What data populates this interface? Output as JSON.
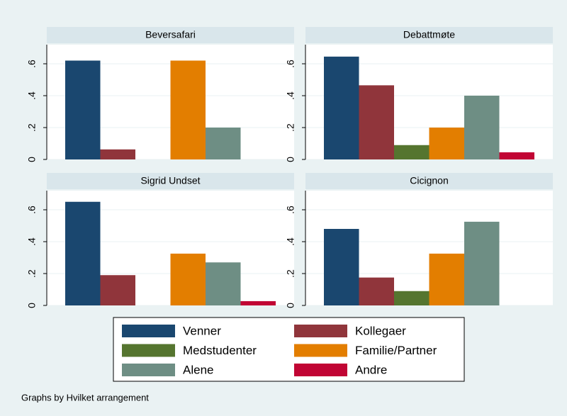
{
  "chart_data": [
    {
      "type": "bar",
      "title": "Beversafari",
      "values": [
        0.62,
        0.063,
        null,
        0.62,
        0.2,
        null
      ],
      "ylim": [
        0,
        0.72
      ],
      "yticks": [
        0,
        {
          "value": 0.2,
          "label": ".2"
        },
        {
          "value": 0.4,
          "label": ".4"
        },
        {
          "value": 0.6,
          "label": ".6"
        }
      ],
      "grid": true
    },
    {
      "type": "bar",
      "title": "Debattmøte",
      "values": [
        0.645,
        0.465,
        0.09,
        0.2,
        0.4,
        0.045
      ],
      "ylim": [
        0,
        0.72
      ],
      "yticks": [
        0,
        {
          "value": 0.2,
          "label": ".2"
        },
        {
          "value": 0.4,
          "label": ".4"
        },
        {
          "value": 0.6,
          "label": ".6"
        }
      ],
      "grid": true
    },
    {
      "type": "bar",
      "title": "Sigrid Undset",
      "values": [
        0.65,
        0.19,
        null,
        0.325,
        0.27,
        0.027
      ],
      "ylim": [
        0,
        0.72
      ],
      "yticks": [
        0,
        {
          "value": 0.2,
          "label": ".2"
        },
        {
          "value": 0.4,
          "label": ".4"
        },
        {
          "value": 0.6,
          "label": ".6"
        }
      ],
      "grid": true
    },
    {
      "type": "bar",
      "title": "Cicignon",
      "values": [
        0.48,
        0.175,
        0.09,
        0.325,
        0.525,
        null
      ],
      "ylim": [
        0,
        0.72
      ],
      "yticks": [
        0,
        {
          "value": 0.2,
          "label": ".2"
        },
        {
          "value": 0.4,
          "label": ".4"
        },
        {
          "value": 0.6,
          "label": ".6"
        }
      ],
      "grid": true
    }
  ],
  "legend": {
    "series": [
      {
        "name": "Venner",
        "color": "#1a476f"
      },
      {
        "name": "Kollegaer",
        "color": "#90353b"
      },
      {
        "name": "Medstudenter",
        "color": "#55752f"
      },
      {
        "name": "Familie/Partner",
        "color": "#e37e00"
      },
      {
        "name": "Alene",
        "color": "#6e8e84"
      },
      {
        "name": "Andre",
        "color": "#c10534"
      }
    ]
  },
  "note": "Graphs by Hvilket arrangement"
}
